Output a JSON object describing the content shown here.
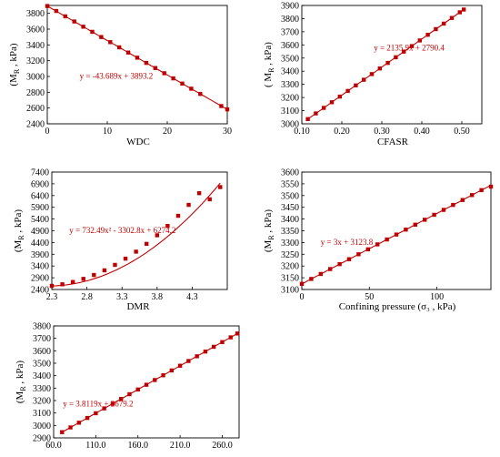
{
  "chart_data": [
    {
      "type": "scatter",
      "xlabel": "WDC",
      "ylabel": "(M_R , kPa)",
      "xlim": [
        0,
        30
      ],
      "ylim": [
        2400,
        3900
      ],
      "xticks": [
        0,
        10,
        20,
        30
      ],
      "xtick_labels": [
        "0",
        "10",
        "20",
        "30"
      ],
      "yticks": [
        2400,
        2600,
        2800,
        3000,
        3200,
        3400,
        3600,
        3800
      ],
      "ytick_labels": [
        "2400",
        "2600",
        "2800",
        "3000",
        "3200",
        "3400",
        "3600",
        "3800"
      ],
      "trendline": {
        "kind": "linear",
        "coef": [
          3893.2,
          -43.689
        ]
      },
      "equation": "y = -43.689x + 3893.2",
      "color": "#c00000",
      "series": [
        {
          "x": [
            0,
            1.5,
            3,
            4.5,
            6,
            7.5,
            9,
            10.5,
            12,
            13.5,
            15,
            16.5,
            18,
            19.5,
            21,
            22.5,
            24,
            25.5,
            29,
            30
          ],
          "y": [
            3893,
            3830,
            3762,
            3697,
            3631,
            3566,
            3500,
            3435,
            3369,
            3303,
            3238,
            3172,
            3107,
            3041,
            2976,
            2910,
            2845,
            2779,
            2625,
            2583
          ]
        }
      ]
    },
    {
      "type": "scatter",
      "xlabel": "CFASR",
      "ylabel": "( M_R , kPa)",
      "xlim": [
        0.1,
        0.55
      ],
      "ylim": [
        3000,
        3900
      ],
      "xticks": [
        0.1,
        0.2,
        0.3,
        0.4,
        0.5
      ],
      "xtick_labels": [
        "0.10",
        "0.20",
        "0.30",
        "0.40",
        "0.50"
      ],
      "yticks": [
        3000,
        3100,
        3200,
        3300,
        3400,
        3500,
        3600,
        3700,
        3800,
        3900
      ],
      "ytick_labels": [
        "3000",
        "3100",
        "3200",
        "3300",
        "3400",
        "3500",
        "3600",
        "3700",
        "3800",
        "3900"
      ],
      "trendline": {
        "kind": "linear",
        "coef": [
          2790.4,
          2135.9
        ]
      },
      "equation": "y = 2135.9x + 2790.4",
      "color": "#c00000",
      "series": [
        {
          "x": [
            0.115,
            0.135,
            0.155,
            0.175,
            0.195,
            0.215,
            0.235,
            0.255,
            0.275,
            0.295,
            0.315,
            0.335,
            0.355,
            0.375,
            0.395,
            0.415,
            0.435,
            0.455,
            0.475,
            0.495,
            0.505
          ],
          "y": [
            3036,
            3079,
            3121,
            3164,
            3207,
            3250,
            3292,
            3335,
            3378,
            3421,
            3463,
            3506,
            3549,
            3591,
            3634,
            3677,
            3720,
            3762,
            3805,
            3848,
            3869
          ]
        }
      ]
    },
    {
      "type": "scatter",
      "xlabel": "DMR",
      "ylabel": "(M_R , kPa)",
      "xlim": [
        2.3,
        4.8
      ],
      "ylim": [
        2400,
        7400
      ],
      "xticks": [
        2.3,
        2.8,
        3.3,
        3.8,
        4.3
      ],
      "xtick_labels": [
        "2.3",
        "2.8",
        "3.3",
        "3.8",
        "4.3"
      ],
      "yticks": [
        2400,
        2900,
        3400,
        3900,
        4400,
        4900,
        5400,
        5900,
        6400,
        6900,
        7400
      ],
      "ytick_labels": [
        "2400",
        "2900",
        "3400",
        "3900",
        "4400",
        "4900",
        "5400",
        "5900",
        "6400",
        "6900",
        "7400"
      ],
      "trendline": {
        "kind": "poly2",
        "coef": [
          6274.2,
          -3302.8,
          732.49
        ]
      },
      "equation": "y = 732.49x² - 3302.8x + 6274.2",
      "color": "#c00000",
      "series": [
        {
          "x": [
            2.3,
            2.45,
            2.6,
            2.75,
            2.9,
            3.05,
            3.2,
            3.35,
            3.5,
            3.65,
            3.8,
            3.95,
            4.1,
            4.25,
            4.4,
            4.55,
            4.7
          ],
          "y": [
            2555,
            2621,
            2720,
            2852,
            3017,
            3216,
            3448,
            3713,
            4011,
            4343,
            4708,
            5106,
            5538,
            6002,
            6500,
            6240,
            6760
          ]
        }
      ]
    },
    {
      "type": "scatter",
      "xlabel": "Confining pressure (σ₃ , kPa)",
      "ylabel": "(M_R , kPa)",
      "xlim": [
        0,
        140
      ],
      "ylim": [
        3100,
        3600
      ],
      "xticks": [
        0,
        50,
        100
      ],
      "xtick_labels": [
        "0",
        "50",
        "100"
      ],
      "yticks": [
        3100,
        3150,
        3200,
        3250,
        3300,
        3350,
        3400,
        3450,
        3500,
        3550,
        3600
      ],
      "ytick_labels": [
        "3100",
        "3150",
        "3200",
        "3250",
        "3300",
        "3350",
        "3400",
        "3450",
        "3500",
        "3550",
        "3600"
      ],
      "trendline": {
        "kind": "linear",
        "coef": [
          3123.8,
          3
        ]
      },
      "equation": "y = 3x + 3123.8",
      "color": "#c00000",
      "series": [
        {
          "x": [
            0,
            7,
            14,
            21,
            28,
            35,
            42,
            49,
            56,
            63,
            70,
            77,
            84,
            91,
            98,
            105,
            112,
            119,
            126,
            133,
            140
          ],
          "y": [
            3124,
            3145,
            3166,
            3187,
            3208,
            3229,
            3250,
            3271,
            3292,
            3313,
            3334,
            3355,
            3376,
            3397,
            3418,
            3439,
            3460,
            3481,
            3502,
            3523,
            3538
          ]
        }
      ]
    },
    {
      "type": "scatter",
      "xlabel": "",
      "ylabel": "(M_R , kPa)",
      "xlim": [
        60,
        280
      ],
      "ylim": [
        2900,
        3800
      ],
      "xticks": [
        60,
        110,
        160,
        210,
        260
      ],
      "xtick_labels": [
        "60.0",
        "110.0",
        "160.0",
        "210.0",
        "260.0"
      ],
      "yticks": [
        2900,
        3000,
        3100,
        3200,
        3300,
        3400,
        3500,
        3600,
        3700,
        3800
      ],
      "ytick_labels": [
        "2900",
        "3000",
        "3100",
        "3200",
        "3300",
        "3400",
        "3500",
        "3600",
        "3700",
        "3800"
      ],
      "trendline": {
        "kind": "linear",
        "coef": [
          2679.2,
          3.8119
        ]
      },
      "equation": "y = 3.8119x + 2679.2",
      "color": "#c00000",
      "series": [
        {
          "x": [
            70,
            80,
            90,
            100,
            110,
            120,
            130,
            140,
            150,
            160,
            170,
            180,
            190,
            200,
            210,
            220,
            230,
            240,
            250,
            260,
            270,
            278
          ],
          "y": [
            2946,
            2984,
            3022,
            3060,
            3098,
            3137,
            3175,
            3213,
            3251,
            3289,
            3327,
            3365,
            3403,
            3442,
            3480,
            3518,
            3556,
            3594,
            3632,
            3670,
            3708,
            3739
          ]
        }
      ]
    }
  ]
}
